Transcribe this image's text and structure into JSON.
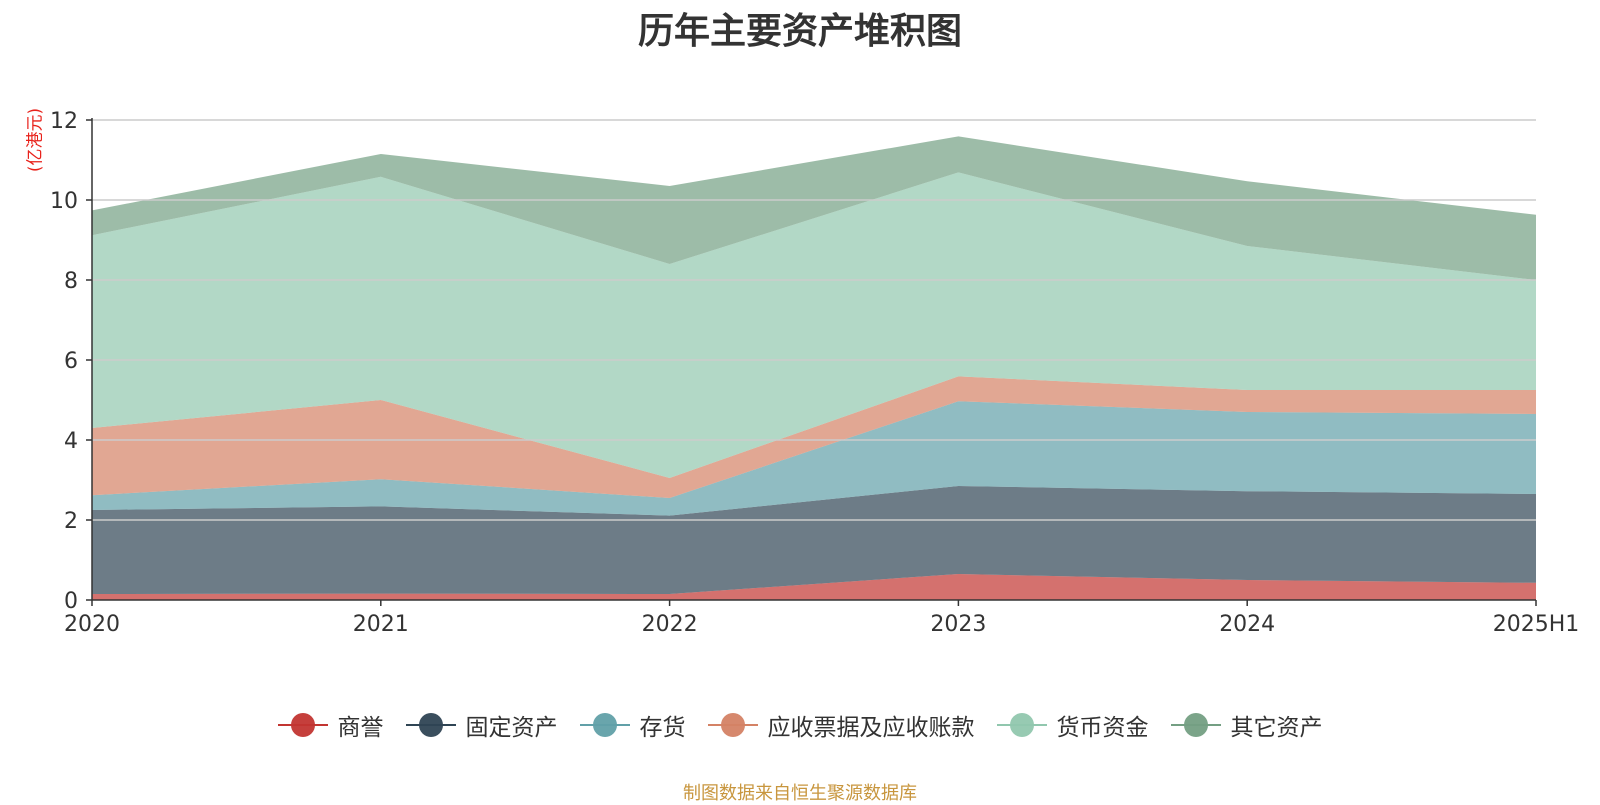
{
  "chart_data": {
    "type": "area",
    "stacked": true,
    "title": "历年主要资产堆积图",
    "unit": "(亿港元)",
    "categories": [
      "2020",
      "2021",
      "2022",
      "2023",
      "2024",
      "2025H1"
    ],
    "ylim": [
      0,
      12
    ],
    "yticks": [
      "0",
      "2",
      "4",
      "6",
      "8",
      "10",
      "12"
    ],
    "grid": true,
    "legend_position": "bottom",
    "series": [
      {
        "name": "商誉",
        "color": "#c23531",
        "values": [
          0.15,
          0.16,
          0.15,
          0.65,
          0.5,
          0.43
        ]
      },
      {
        "name": "固定资产",
        "color": "#2f4554",
        "values": [
          2.1,
          2.18,
          1.96,
          2.2,
          2.22,
          2.22
        ]
      },
      {
        "name": "存货",
        "color": "#61a0a8",
        "values": [
          0.37,
          0.68,
          0.44,
          2.12,
          1.98,
          2.0
        ]
      },
      {
        "name": "应收票据及应收账款",
        "color": "#d48265",
        "values": [
          1.68,
          1.98,
          0.5,
          0.62,
          0.55,
          0.6
        ]
      },
      {
        "name": "货币资金",
        "color": "#91c7ae",
        "values": [
          4.82,
          5.58,
          5.35,
          5.1,
          3.6,
          2.75
        ]
      },
      {
        "name": "其它资产",
        "color": "#749f83",
        "values": [
          0.62,
          0.57,
          1.95,
          0.9,
          1.62,
          1.63
        ]
      }
    ]
  },
  "source_text": "制图数据来自恒生聚源数据库"
}
